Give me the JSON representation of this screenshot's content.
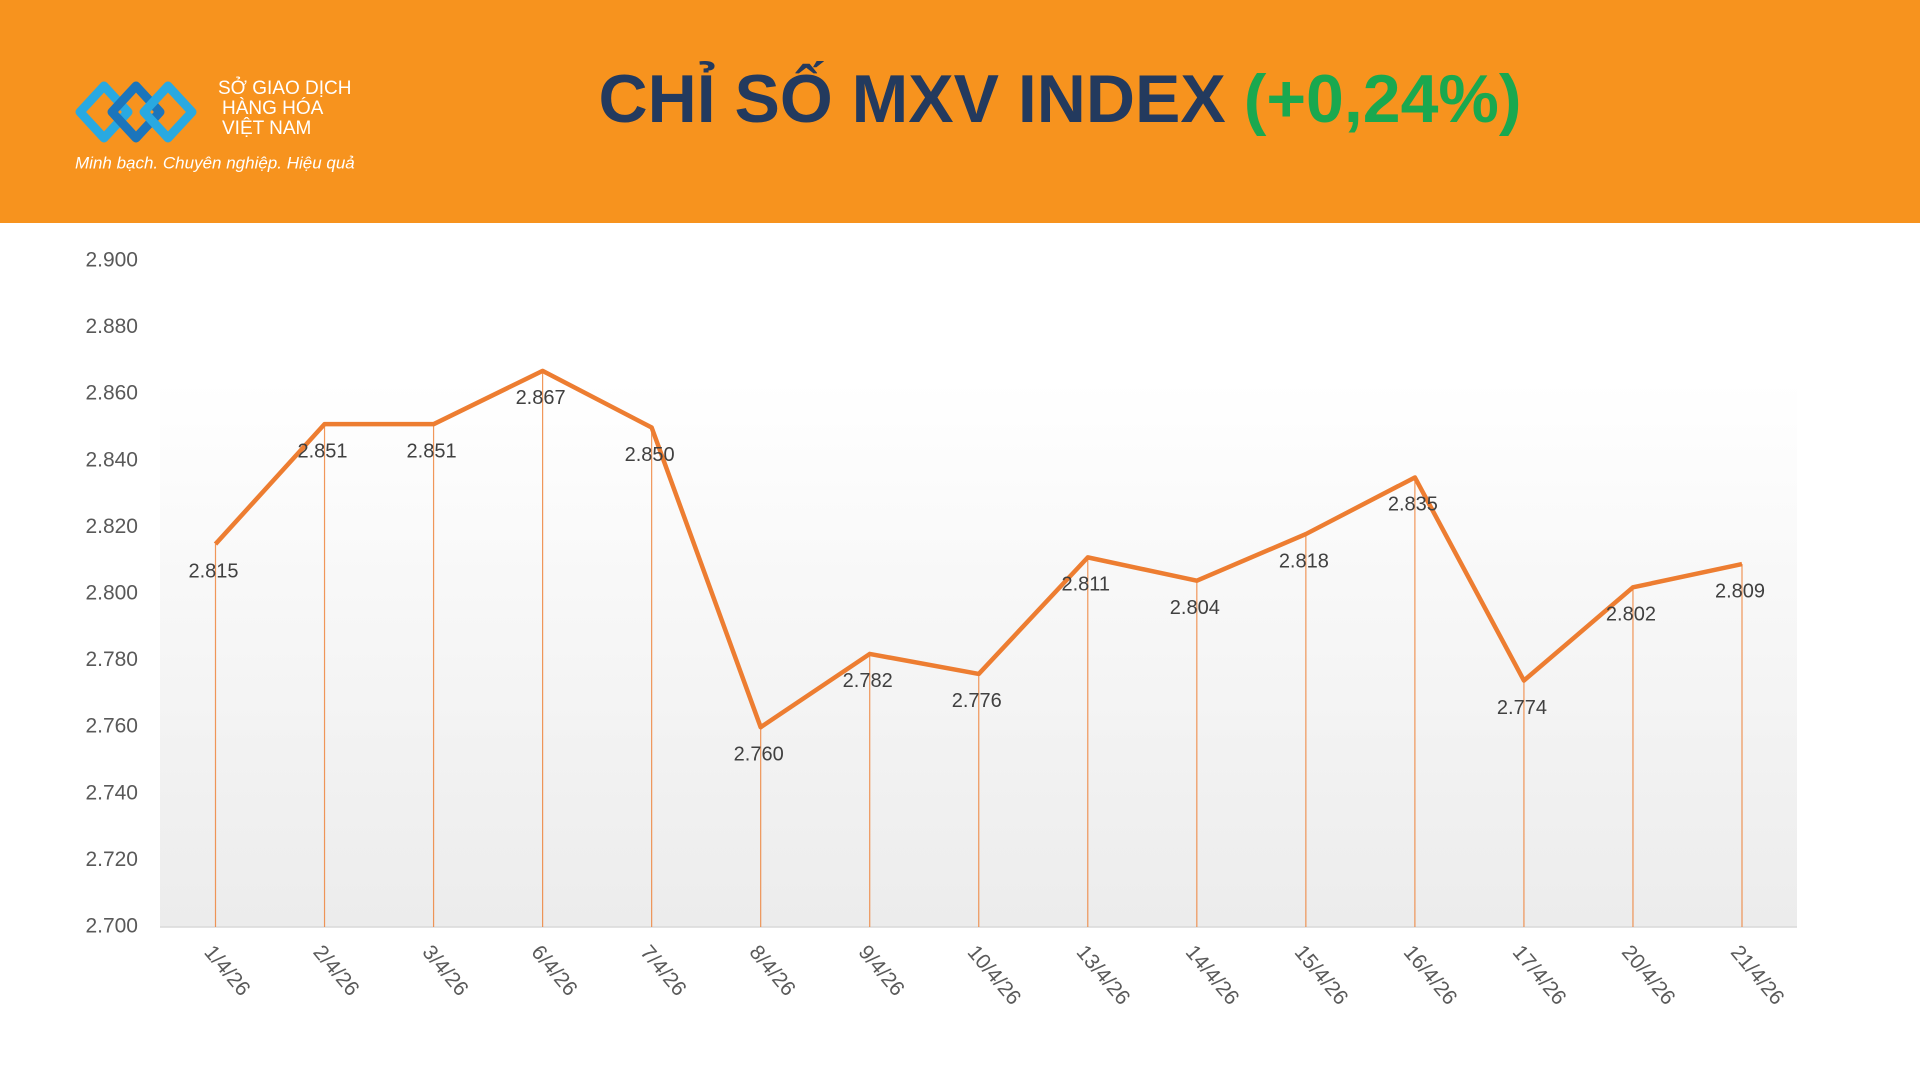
{
  "header": {
    "logo_line1": "SỞ GIAO DỊCH",
    "logo_line2": "HÀNG HÓA",
    "logo_line3": "VIỆT NAM",
    "slogan": "Minh bạch. Chuyên nghiệp. Hiệu quả"
  },
  "chart_data": {
    "type": "line",
    "title": "CHỈ SỐ MXV INDEX",
    "title_change": "(+0,24%)",
    "categories": [
      "1/4/26",
      "2/4/26",
      "3/4/26",
      "6/4/26",
      "7/4/26",
      "8/4/26",
      "9/4/26",
      "10/4/26",
      "13/4/26",
      "14/4/26",
      "15/4/26",
      "16/4/26",
      "17/4/26",
      "20/4/26",
      "21/4/26"
    ],
    "values": [
      2815,
      2851,
      2851,
      2867,
      2850,
      2760,
      2782,
      2776,
      2811,
      2804,
      2818,
      2835,
      2774,
      2802,
      2809
    ],
    "value_labels": [
      "2.815",
      "2.851",
      "2.851",
      "2.867",
      "2.850",
      "2.760",
      "2.782",
      "2.776",
      "2.811",
      "2.804",
      "2.818",
      "2.835",
      "2.774",
      "2.802",
      "2.809"
    ],
    "color": "#ed7d31",
    "drop_lines": true,
    "grid": false,
    "ylim": [
      2700,
      2900
    ],
    "yticks": [
      {
        "value": 2700,
        "label": "2.700"
      },
      {
        "value": 2720,
        "label": "2.720"
      },
      {
        "value": 2740,
        "label": "2.740"
      },
      {
        "value": 2760,
        "label": "2.760"
      },
      {
        "value": 2780,
        "label": "2.780"
      },
      {
        "value": 2800,
        "label": "2.800"
      },
      {
        "value": 2820,
        "label": "2.820"
      },
      {
        "value": 2840,
        "label": "2.840"
      },
      {
        "value": 2860,
        "label": "2.860"
      },
      {
        "value": 2880,
        "label": "2.880"
      },
      {
        "value": 2900,
        "label": "2.900"
      }
    ]
  }
}
